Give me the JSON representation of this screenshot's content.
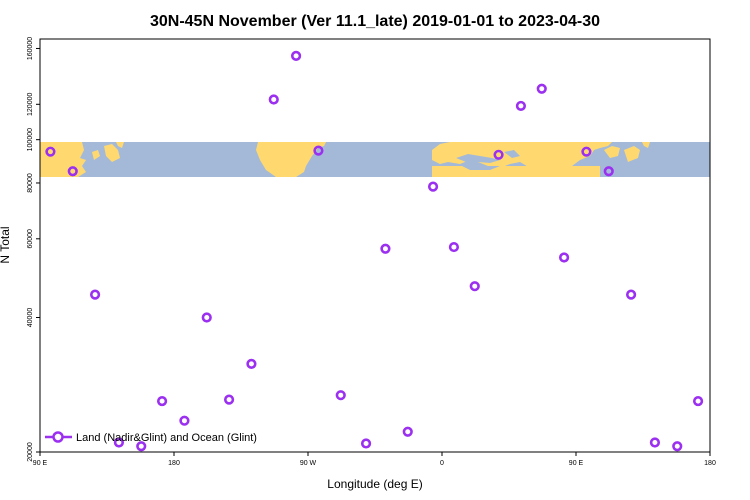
{
  "chart_data": {
    "type": "scatter",
    "title": "30N-45N November (Ver 11.1_late)   2019-01-01 to 2023-04-30",
    "xlabel": "Longitude (deg E)",
    "ylabel": "N Total",
    "x_ticks": [
      {
        "value": 90,
        "label": "90 E"
      },
      {
        "value": 180,
        "label": "180"
      },
      {
        "value": 270,
        "label": "90 W"
      },
      {
        "value": 360,
        "label": "0"
      },
      {
        "value": 450,
        "label": "90 E"
      },
      {
        "value": 540,
        "label": "180"
      }
    ],
    "y_ticks": [
      20000,
      40000,
      60000,
      80000,
      100000,
      120000,
      160000
    ],
    "xlim": [
      90,
      540
    ],
    "ylim": [
      20000,
      168000
    ],
    "y_scale": "log",
    "grid": false,
    "legend_position": "bottom-left",
    "map_band": {
      "description": "world map strip, latitude 30N-45N",
      "land_color": "#ffd970",
      "ocean_color": "#a4b9d7",
      "y_range": [
        80000,
        98000
      ]
    },
    "series": [
      {
        "name": "Land (Nadir&Glint) and Ocean (Glint)",
        "color": "#9b30f0",
        "marker": "open-circle",
        "points": [
          {
            "x": 97,
            "y": 94000
          },
          {
            "x": 112,
            "y": 85000
          },
          {
            "x": 127,
            "y": 45000
          },
          {
            "x": 143,
            "y": 21000
          },
          {
            "x": 158,
            "y": 20600
          },
          {
            "x": 172,
            "y": 26000
          },
          {
            "x": 187,
            "y": 23500
          },
          {
            "x": 202,
            "y": 40000
          },
          {
            "x": 217,
            "y": 26200
          },
          {
            "x": 232,
            "y": 31500
          },
          {
            "x": 247,
            "y": 123000
          },
          {
            "x": 262,
            "y": 154000
          },
          {
            "x": 277,
            "y": 94500
          },
          {
            "x": 292,
            "y": 26800
          },
          {
            "x": 309,
            "y": 20900
          },
          {
            "x": 322,
            "y": 57000
          },
          {
            "x": 337,
            "y": 22200
          },
          {
            "x": 354,
            "y": 78500
          },
          {
            "x": 368,
            "y": 57500
          },
          {
            "x": 382,
            "y": 47000
          },
          {
            "x": 398,
            "y": 92500
          },
          {
            "x": 413,
            "y": 119000
          },
          {
            "x": 427,
            "y": 130000
          },
          {
            "x": 442,
            "y": 54500
          },
          {
            "x": 457,
            "y": 94000
          },
          {
            "x": 472,
            "y": 85000
          },
          {
            "x": 487,
            "y": 45000
          },
          {
            "x": 503,
            "y": 21000
          },
          {
            "x": 518,
            "y": 20600
          },
          {
            "x": 532,
            "y": 26000
          }
        ]
      }
    ]
  }
}
